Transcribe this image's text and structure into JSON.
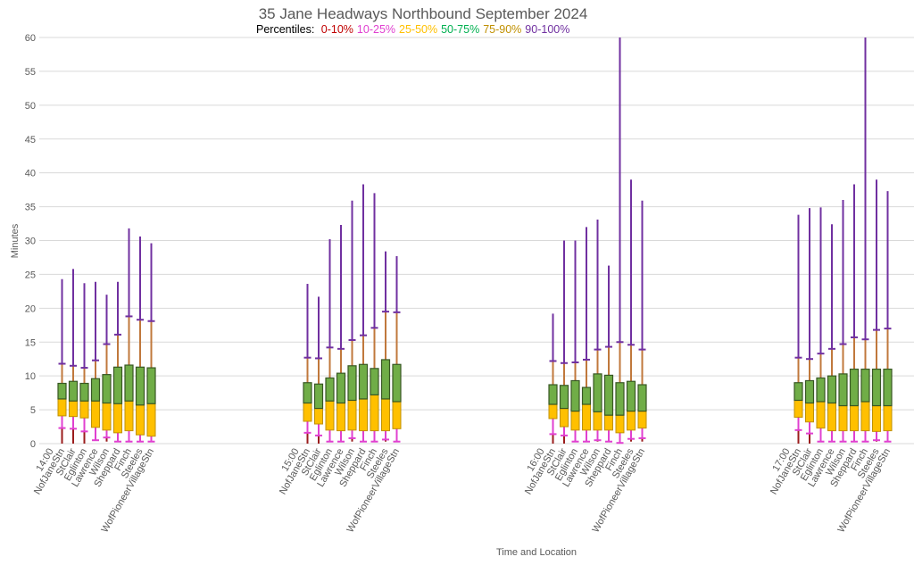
{
  "chart_data": {
    "type": "box",
    "title": "35 Jane Headways Northbound September 2024",
    "legend": {
      "prefix": "Percentiles:",
      "placement": "top-center",
      "entries": [
        {
          "label": "0-10%",
          "color": "#c00000"
        },
        {
          "label": "10-25%",
          "color": "#e040d0"
        },
        {
          "label": "25-50%",
          "color": "#ffc000"
        },
        {
          "label": "50-75%",
          "color": "#00b050"
        },
        {
          "label": "75-90%",
          "color": "#c09000"
        },
        {
          "label": "90-100%",
          "color": "#7030a0"
        }
      ]
    },
    "xlabel": "Time and Location",
    "ylabel": "Minutes",
    "ylim": [
      0,
      60
    ],
    "yticks": [
      0,
      5,
      10,
      15,
      20,
      25,
      30,
      35,
      40,
      45,
      50,
      55,
      60
    ],
    "grid": true,
    "stops": [
      "NofJaneStn",
      "StClair",
      "Eglinton",
      "Lawrence",
      "Wilson",
      "Sheppard",
      "Finch",
      "Steeles",
      "WofPioneerVillageStn"
    ],
    "series_fields": [
      "min",
      "p10",
      "p25",
      "p50",
      "p75",
      "p90",
      "max"
    ],
    "colors": {
      "seg_0_10": "#9b1c1c",
      "seg_10_25": "#e040d0",
      "box_25_50": "#ffc000",
      "box_50_75": "#70ad47",
      "box_border": "#385723",
      "seg_75_90": "#c0783c",
      "seg_90_100": "#7030a0"
    },
    "groups": [
      {
        "time": "14:00",
        "values": [
          [
            0,
            2.3,
            4.1,
            6.6,
            8.9,
            11.8,
            24.3
          ],
          [
            0,
            2.2,
            4.0,
            6.3,
            9.2,
            11.5,
            25.8
          ],
          [
            0,
            1.8,
            3.8,
            6.3,
            8.9,
            11.2,
            23.7
          ],
          [
            0.5,
            0.5,
            2.4,
            6.3,
            9.6,
            12.3,
            23.9
          ],
          [
            0.3,
            0.9,
            2.0,
            6.0,
            10.2,
            14.7,
            22.0
          ],
          [
            0.3,
            0.3,
            1.6,
            5.9,
            11.3,
            16.1,
            23.9
          ],
          [
            0.3,
            0.3,
            1.9,
            6.3,
            11.6,
            18.8,
            31.8
          ],
          [
            0.3,
            0.3,
            1.3,
            5.7,
            11.3,
            18.3,
            30.6
          ],
          [
            0.3,
            0.3,
            1.1,
            5.9,
            11.2,
            18.1,
            29.6
          ]
        ]
      },
      {
        "time": "15:00",
        "values": [
          [
            0,
            1.6,
            3.3,
            6.0,
            9.0,
            12.7,
            23.6
          ],
          [
            0,
            1.2,
            2.9,
            5.2,
            8.8,
            12.6,
            21.7
          ],
          [
            0.3,
            0.3,
            2.0,
            6.3,
            9.7,
            14.2,
            30.2
          ],
          [
            0.3,
            0.3,
            1.9,
            6.0,
            10.4,
            14.0,
            32.3
          ],
          [
            0.3,
            0.8,
            2.0,
            6.4,
            11.5,
            15.3,
            35.9
          ],
          [
            0.3,
            0.3,
            1.9,
            6.6,
            11.7,
            16.0,
            38.3
          ],
          [
            0.3,
            0.3,
            1.9,
            7.2,
            11.1,
            17.1,
            37.0
          ],
          [
            0.3,
            0.6,
            1.9,
            6.6,
            12.4,
            19.5,
            28.4
          ],
          [
            0.3,
            0.3,
            2.2,
            6.2,
            11.7,
            19.4,
            27.7
          ]
        ]
      },
      {
        "time": "16:00",
        "values": [
          [
            0,
            1.4,
            3.7,
            5.8,
            8.7,
            12.2,
            19.2
          ],
          [
            0,
            1.2,
            2.5,
            5.2,
            8.6,
            11.9,
            30.0
          ],
          [
            0.3,
            0.3,
            2.0,
            4.8,
            9.3,
            12.0,
            30.0
          ],
          [
            0.3,
            0.3,
            2.0,
            5.8,
            8.3,
            12.4,
            32.0
          ],
          [
            0.3,
            0.5,
            2.0,
            4.7,
            10.3,
            13.9,
            33.1
          ],
          [
            0.3,
            0.3,
            2.0,
            4.2,
            10.1,
            14.3,
            26.3
          ],
          [
            0.1,
            0.1,
            1.6,
            4.2,
            9.0,
            15.0,
            60.0
          ],
          [
            0.3,
            0.7,
            2.0,
            4.8,
            9.2,
            14.6,
            39.0
          ],
          [
            0.3,
            0.8,
            2.3,
            4.8,
            8.7,
            13.9,
            35.9
          ]
        ]
      },
      {
        "time": "17:00",
        "values": [
          [
            0,
            2.0,
            3.9,
            6.4,
            9.0,
            12.7,
            33.8
          ],
          [
            0,
            1.5,
            3.2,
            6.0,
            9.3,
            12.5,
            34.8
          ],
          [
            0.3,
            0.3,
            2.3,
            6.2,
            9.7,
            13.3,
            34.9
          ],
          [
            0.3,
            0.3,
            1.9,
            6.0,
            10.0,
            14.0,
            32.4
          ],
          [
            0.3,
            0.3,
            1.9,
            5.6,
            10.3,
            14.7,
            36.0
          ],
          [
            0.3,
            0.3,
            1.9,
            5.6,
            11.0,
            15.7,
            38.3
          ],
          [
            0.3,
            0.3,
            1.9,
            6.2,
            11.0,
            15.4,
            60.0
          ],
          [
            0.3,
            0.5,
            1.8,
            5.6,
            11.0,
            16.8,
            39.0
          ],
          [
            0.3,
            0.3,
            1.9,
            5.6,
            11.0,
            17.0,
            37.3
          ]
        ]
      }
    ]
  }
}
